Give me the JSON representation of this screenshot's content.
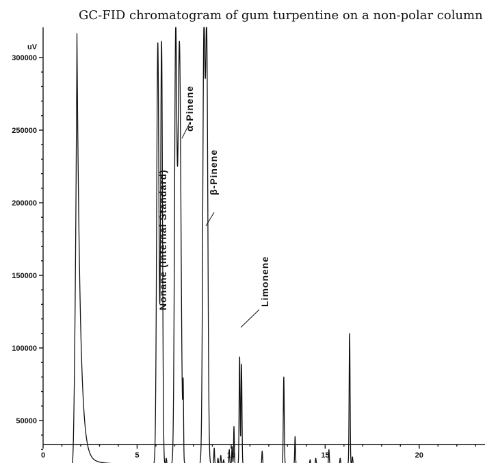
{
  "chart_data": {
    "type": "line",
    "title": "GC-FID chromatogram of gum turpentine on a non-polar column",
    "xlabel": "",
    "ylabel": "uV",
    "xlim": [
      0,
      23.5
    ],
    "ylim": [
      0,
      310000
    ],
    "x_ticks": [
      0,
      5,
      10,
      15,
      20
    ],
    "y_ticks": [
      50000,
      100000,
      150000,
      200000,
      250000,
      300000
    ],
    "x_tick_labels": [
      "0",
      "5",
      "10",
      "15",
      "20"
    ],
    "y_tick_labels": [
      "50000",
      "100000",
      "150000",
      "200000",
      "250000",
      "300000"
    ],
    "baseline": 20000,
    "solvent_front": {
      "start": 1.55,
      "peak_time": 1.8,
      "value": 310000,
      "tail_end": 6.0
    },
    "peaks": [
      {
        "time": 6.1,
        "height": 310000,
        "width": 0.06
      },
      {
        "time": 6.3,
        "height": 310000,
        "width": 0.05
      },
      {
        "time": 6.55,
        "height": 24000,
        "width": 0.02
      },
      {
        "time": 7.05,
        "height": 310000,
        "width": 0.06
      },
      {
        "time": 7.25,
        "height": 310000,
        "width": 0.08
      },
      {
        "time": 7.45,
        "height": 66000,
        "width": 0.02
      },
      {
        "time": 8.55,
        "height": 310000,
        "width": 0.06
      },
      {
        "time": 8.7,
        "height": 310000,
        "width": 0.06
      },
      {
        "time": 9.1,
        "height": 31000,
        "width": 0.02
      },
      {
        "time": 9.3,
        "height": 24000,
        "width": 0.02
      },
      {
        "time": 9.45,
        "height": 26000,
        "width": 0.02
      },
      {
        "time": 9.6,
        "height": 23000,
        "width": 0.02
      },
      {
        "time": 9.9,
        "height": 30000,
        "width": 0.02
      },
      {
        "time": 10.05,
        "height": 32000,
        "width": 0.02
      },
      {
        "time": 10.15,
        "height": 46000,
        "width": 0.02
      },
      {
        "time": 10.45,
        "height": 94000,
        "width": 0.025
      },
      {
        "time": 10.55,
        "height": 89000,
        "width": 0.025
      },
      {
        "time": 11.65,
        "height": 29000,
        "width": 0.02
      },
      {
        "time": 12.8,
        "height": 80000,
        "width": 0.025
      },
      {
        "time": 13.4,
        "height": 39000,
        "width": 0.02
      },
      {
        "time": 14.2,
        "height": 23000,
        "width": 0.02
      },
      {
        "time": 14.5,
        "height": 24000,
        "width": 0.02
      },
      {
        "time": 15.2,
        "height": 30000,
        "width": 0.02
      },
      {
        "time": 15.8,
        "height": 24000,
        "width": 0.02
      },
      {
        "time": 16.3,
        "height": 110000,
        "width": 0.025
      },
      {
        "time": 16.45,
        "height": 25000,
        "width": 0.02
      }
    ],
    "annotations": [
      {
        "text": "Nonane (Internal Standard)",
        "peak_time": 6.3
      },
      {
        "text": "α-Pinene",
        "peak_time": 7.25
      },
      {
        "text": "β-Pinene",
        "peak_time": 8.7
      },
      {
        "text": "Limonene",
        "peak_time": 10.5
      }
    ]
  }
}
